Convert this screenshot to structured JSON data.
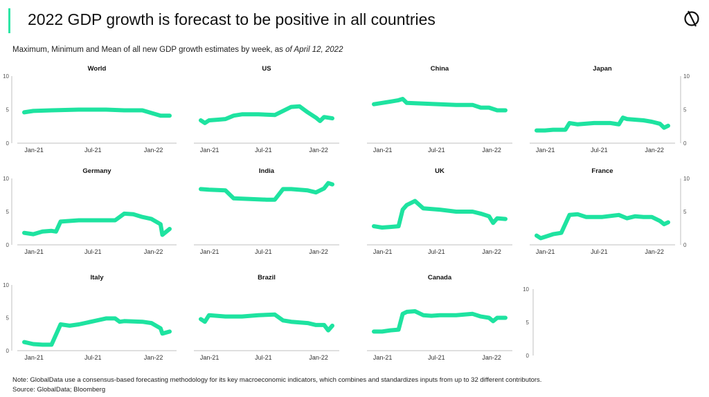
{
  "header": {
    "title": "2022 GDP growth is forecast to be positive in all countries",
    "subtitle_main": "Maximum, Minimum and Mean of all new GDP growth estimates by week, as ",
    "subtitle_date": "of April 12, 2022"
  },
  "footer": {
    "note": "Note: GlobalData use a consensus-based forecasting methodology for its key macroeconomic indicators, which combines and standardizes inputs from up to 32 different contributors.",
    "source": "Source: GlobalData; Bloomberg"
  },
  "colors": {
    "accent": "#2ee6a6",
    "line": "#1ee3a0",
    "axis": "#bfbfbf"
  },
  "icons": {
    "logo": "globaldata-logo-icon"
  },
  "chart_data": [
    {
      "type": "line",
      "title": "World",
      "x_ticks": [
        "Jan-21",
        "Jul-21",
        "Jan-22"
      ],
      "ylim": [
        0,
        10
      ],
      "y_ticks": [
        0,
        5,
        10
      ],
      "series": [
        {
          "x": [
            0,
            1,
            3,
            6,
            9,
            11,
            13,
            15,
            16
          ],
          "values": [
            4.6,
            4.8,
            4.9,
            5.0,
            5.0,
            4.9,
            4.9,
            4.1,
            4.1
          ]
        }
      ]
    },
    {
      "type": "line",
      "title": "US",
      "x_ticks": [
        "Jan-21",
        "Jul-21",
        "Jan-22"
      ],
      "ylim": [
        0,
        10
      ],
      "y_ticks": [
        0,
        5,
        10
      ],
      "series": [
        {
          "x": [
            0,
            0.5,
            1,
            2,
            3,
            4,
            5,
            7,
            9,
            11,
            12,
            13,
            14,
            14.5,
            15,
            16
          ],
          "values": [
            3.4,
            3.0,
            3.4,
            3.5,
            3.6,
            4.1,
            4.3,
            4.3,
            4.2,
            5.4,
            5.5,
            4.6,
            3.8,
            3.3,
            3.9,
            3.7
          ]
        }
      ]
    },
    {
      "type": "line",
      "title": "China",
      "x_ticks": [
        "Jan-21",
        "Jul-21",
        "Jan-22"
      ],
      "ylim": [
        0,
        10
      ],
      "y_ticks": [
        0,
        5,
        10
      ],
      "series": [
        {
          "x": [
            0,
            1,
            2,
            3,
            3.5,
            4,
            6,
            8,
            10,
            12,
            13,
            14,
            15,
            16
          ],
          "values": [
            5.8,
            6.0,
            6.2,
            6.4,
            6.6,
            6.0,
            5.9,
            5.8,
            5.7,
            5.7,
            5.3,
            5.3,
            4.9,
            4.9
          ]
        }
      ]
    },
    {
      "type": "line",
      "title": "Japan",
      "x_ticks": [
        "Jan-21",
        "Jul-21",
        "Jan-22"
      ],
      "ylim": [
        0,
        10
      ],
      "y_ticks": [
        0,
        5,
        10
      ],
      "series": [
        {
          "x": [
            0,
            1,
            2,
            3,
            3.5,
            4,
            5,
            7,
            9,
            10,
            10.5,
            11,
            13,
            14,
            15,
            15.5,
            16
          ],
          "values": [
            1.9,
            1.9,
            2.0,
            2.0,
            2.0,
            3.0,
            2.8,
            3.0,
            3.0,
            2.8,
            3.8,
            3.6,
            3.4,
            3.2,
            2.9,
            2.3,
            2.6
          ]
        }
      ]
    },
    {
      "type": "line",
      "title": "Germany",
      "x_ticks": [
        "Jan-21",
        "Jul-21",
        "Jan-22"
      ],
      "ylim": [
        0,
        10
      ],
      "y_ticks": [
        0,
        5,
        10
      ],
      "series": [
        {
          "x": [
            0,
            1,
            2,
            3,
            3.5,
            4,
            6,
            8,
            10,
            11,
            12,
            13,
            14,
            15,
            15.2,
            16
          ],
          "values": [
            1.8,
            1.6,
            2.0,
            2.1,
            2.0,
            3.5,
            3.7,
            3.7,
            3.7,
            4.7,
            4.6,
            4.2,
            3.9,
            3.1,
            1.5,
            2.4
          ]
        }
      ]
    },
    {
      "type": "line",
      "title": "India",
      "x_ticks": [
        "Jan-21",
        "Jul-21",
        "Jan-22"
      ],
      "ylim": [
        0,
        10
      ],
      "y_ticks": [
        0,
        5,
        10
      ],
      "series": [
        {
          "x": [
            0,
            1,
            3,
            4,
            6,
            8,
            9,
            10,
            11,
            13,
            14,
            15,
            15.5,
            16
          ],
          "values": [
            8.4,
            8.3,
            8.2,
            7.0,
            6.9,
            6.8,
            6.8,
            8.4,
            8.4,
            8.2,
            7.9,
            8.5,
            9.3,
            9.1
          ]
        }
      ]
    },
    {
      "type": "line",
      "title": "UK",
      "x_ticks": [
        "Jan-21",
        "Jul-21",
        "Jan-22"
      ],
      "ylim": [
        0,
        10
      ],
      "y_ticks": [
        0,
        5,
        10
      ],
      "series": [
        {
          "x": [
            0,
            1,
            2,
            3,
            3.5,
            4,
            5,
            6,
            8,
            10,
            12,
            13,
            14,
            14.5,
            15,
            16
          ],
          "values": [
            2.8,
            2.6,
            2.7,
            2.8,
            5.3,
            6.0,
            6.6,
            5.5,
            5.3,
            5.0,
            5.0,
            4.7,
            4.3,
            3.3,
            4.0,
            3.9
          ]
        }
      ]
    },
    {
      "type": "line",
      "title": "France",
      "x_ticks": [
        "Jan-21",
        "Jul-21",
        "Jan-22"
      ],
      "ylim": [
        0,
        10
      ],
      "y_ticks": [
        0,
        5,
        10
      ],
      "series": [
        {
          "x": [
            0,
            0.5,
            1,
            2,
            3,
            4,
            5,
            6,
            8,
            10,
            11,
            12,
            13,
            14,
            15,
            15.5,
            16
          ],
          "values": [
            1.4,
            1.0,
            1.2,
            1.6,
            1.8,
            4.5,
            4.6,
            4.2,
            4.2,
            4.5,
            4.0,
            4.3,
            4.2,
            4.2,
            3.6,
            3.1,
            3.4
          ]
        }
      ]
    },
    {
      "type": "line",
      "title": "Italy",
      "x_ticks": [
        "Jan-21",
        "Jul-21",
        "Jan-22"
      ],
      "ylim": [
        0,
        10
      ],
      "y_ticks": [
        0,
        5,
        10
      ],
      "series": [
        {
          "x": [
            0,
            1,
            2,
            3,
            4,
            5,
            6,
            8,
            9,
            10,
            10.5,
            11,
            13,
            14,
            15,
            15.2,
            16
          ],
          "values": [
            1.3,
            1.0,
            0.9,
            0.9,
            4.0,
            3.8,
            4.0,
            4.6,
            4.9,
            4.9,
            4.4,
            4.5,
            4.4,
            4.2,
            3.4,
            2.6,
            2.9
          ]
        }
      ]
    },
    {
      "type": "line",
      "title": "Brazil",
      "x_ticks": [
        "Jan-21",
        "Jul-21",
        "Jan-22"
      ],
      "ylim": [
        0,
        10
      ],
      "y_ticks": [
        0,
        5,
        10
      ],
      "series": [
        {
          "x": [
            0,
            0.5,
            1,
            3,
            5,
            7,
            9,
            10,
            11,
            13,
            14,
            15,
            15.5,
            16
          ],
          "values": [
            4.8,
            4.4,
            5.4,
            5.2,
            5.2,
            5.4,
            5.5,
            4.6,
            4.4,
            4.2,
            3.9,
            3.9,
            3.1,
            3.8
          ]
        }
      ]
    },
    {
      "type": "line",
      "title": "Canada",
      "x_ticks": [
        "Jan-21",
        "Jul-21",
        "Jan-22"
      ],
      "ylim": [
        0,
        10
      ],
      "y_ticks": [
        0,
        5,
        10
      ],
      "series": [
        {
          "x": [
            0,
            1,
            2,
            3,
            3.5,
            4,
            5,
            6,
            7,
            8,
            10,
            12,
            13,
            14,
            14.5,
            15,
            16
          ],
          "values": [
            2.9,
            2.9,
            3.1,
            3.2,
            5.6,
            5.9,
            6.0,
            5.4,
            5.3,
            5.4,
            5.4,
            5.6,
            5.2,
            5.0,
            4.5,
            5.0,
            5.0
          ]
        }
      ]
    }
  ]
}
